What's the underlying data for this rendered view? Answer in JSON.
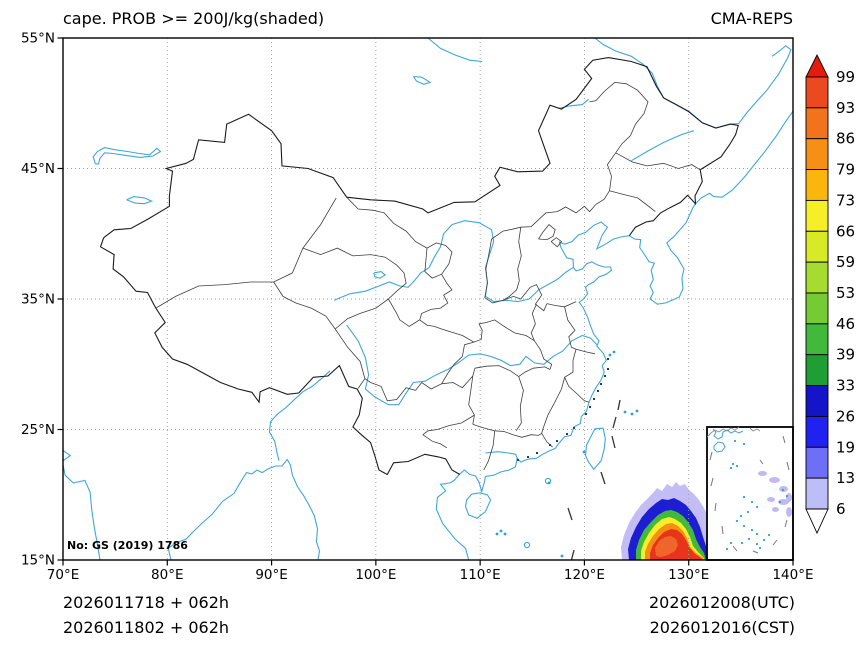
{
  "header": {
    "title": "cape. PROB >= 200J/kg(shaded)",
    "model": "CMA-REPS"
  },
  "axes": {
    "x_ticks": [
      "70°E",
      "80°E",
      "90°E",
      "100°E",
      "110°E",
      "120°E",
      "130°E",
      "140°E"
    ],
    "y_ticks": [
      "55°N",
      "45°N",
      "35°N",
      "25°N",
      "15°N"
    ]
  },
  "colorbar": {
    "values": [
      "99",
      "93",
      "86",
      "79",
      "73",
      "66",
      "59",
      "53",
      "46",
      "39",
      "33",
      "26",
      "19",
      "13",
      "6"
    ],
    "top_arrow_color": "#e21c0e",
    "bottom_arrow_color": "#ffffff",
    "segment_colors": [
      "#eb4a20",
      "#f1731c",
      "#f68f15",
      "#fbb60e",
      "#f6ee27",
      "#d8e926",
      "#a6db2f",
      "#74cb34",
      "#41ba3c",
      "#1f9e33",
      "#1414c8",
      "#2222f0",
      "#6e6ef7",
      "#bdbdf9"
    ]
  },
  "map_label": {
    "license": "No: GS (2019) 1786"
  },
  "footer": {
    "left_lines": [
      "2026011718 + 062h",
      "2026011802 + 062h"
    ],
    "right_lines": [
      "2026012008(UTC)",
      "2026012016(CST)"
    ]
  },
  "chart_data": {
    "type": "heatmap",
    "title": "cape. PROB >= 200J/kg(shaded)",
    "model": "CMA-REPS",
    "variable": "Probability of CAPE >= 200 J/kg",
    "units": "%",
    "lon_range": [
      70,
      140
    ],
    "lat_range": [
      15,
      55
    ],
    "grid_interval_deg": 10,
    "colorbar_levels": [
      6,
      13,
      19,
      26,
      33,
      39,
      46,
      53,
      59,
      66,
      73,
      79,
      86,
      93,
      99
    ],
    "init_times": [
      "2026011718 + 062h",
      "2026011802 + 062h"
    ],
    "valid_times": [
      "2026012008(UTC)",
      "2026012016(CST)"
    ],
    "shaded_region": {
      "description": "High-probability CAPE cluster over the Philippine Sea southeast of Taiwan",
      "lon_range": [
        123.5,
        132
      ],
      "lat_range": [
        15,
        20.5
      ],
      "core_max_percent": 99
    },
    "inset": "South China Sea inset map (bottom right) with scattered low-probability lavender shading"
  }
}
